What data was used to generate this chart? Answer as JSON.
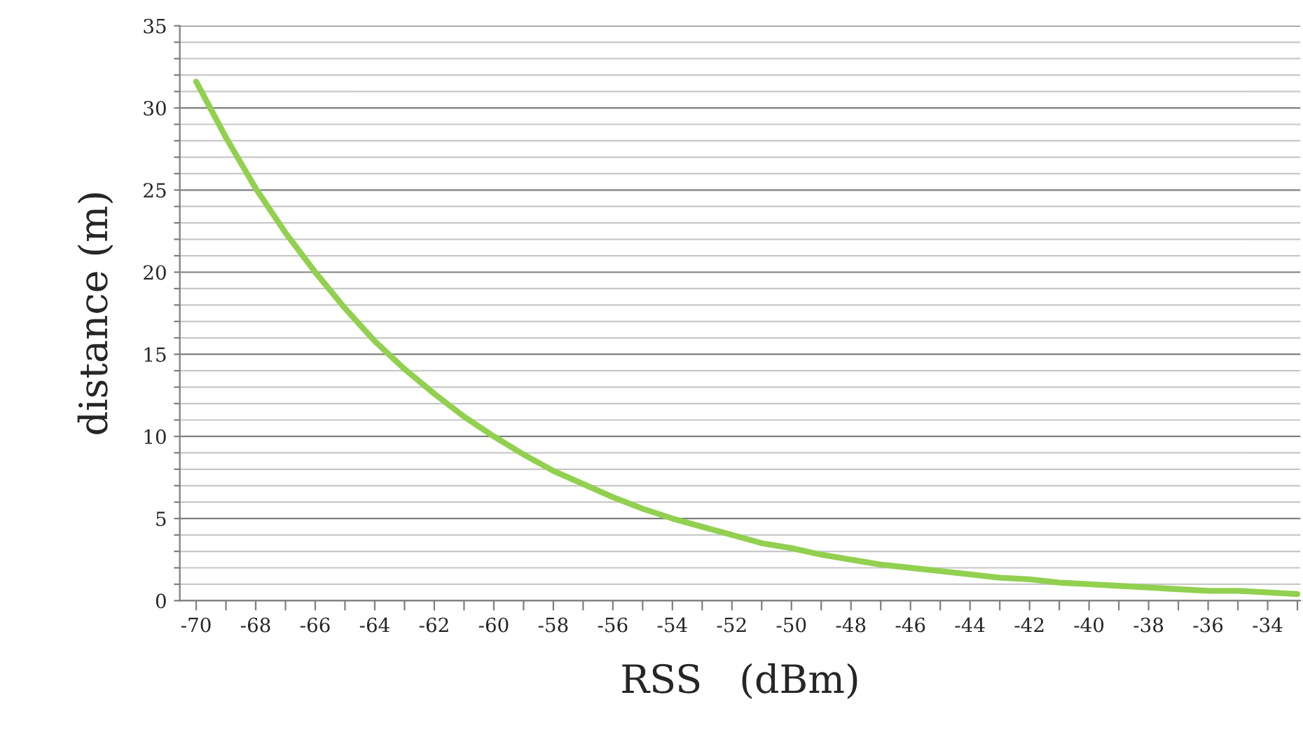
{
  "chart_data": {
    "type": "line",
    "xlabel": "RSS   (dBm)",
    "ylabel": "distance (m)",
    "x": [
      -70,
      -69,
      -68,
      -67,
      -66,
      -65,
      -64,
      -63,
      -62,
      -61,
      -60,
      -59,
      -58,
      -57,
      -56,
      -55,
      -54,
      -53,
      -52,
      -51,
      -50,
      -49,
      -48,
      -47,
      -46,
      -45,
      -44,
      -43,
      -42,
      -41,
      -40,
      -39,
      -38,
      -37,
      -36,
      -35,
      -34,
      -33
    ],
    "series": [
      {
        "color": "#92d050",
        "values": [
          31.6,
          28.2,
          25.1,
          22.4,
          20.0,
          17.8,
          15.8,
          14.1,
          12.6,
          11.2,
          10.0,
          8.9,
          7.9,
          7.1,
          6.3,
          5.6,
          5.0,
          4.5,
          4.0,
          3.5,
          3.2,
          2.8,
          2.5,
          2.2,
          2.0,
          1.8,
          1.6,
          1.4,
          1.3,
          1.1,
          1.0,
          0.9,
          0.8,
          0.7,
          0.6,
          0.6,
          0.5,
          0.4
        ]
      }
    ],
    "xlim": [
      -70.55,
      -32.9
    ],
    "xticks": [
      -70,
      {
        "value": -69,
        "label": null
      },
      -68,
      {
        "value": -67,
        "label": null
      },
      -66,
      {
        "value": -65,
        "label": null
      },
      -64,
      {
        "value": -63,
        "label": null
      },
      -62,
      {
        "value": -61,
        "label": null
      },
      -60,
      {
        "value": -59,
        "label": null
      },
      -58,
      {
        "value": -57,
        "label": null
      },
      -56,
      {
        "value": -55,
        "label": null
      },
      -54,
      {
        "value": -53,
        "label": null
      },
      -52,
      {
        "value": -51,
        "label": null
      },
      -50,
      {
        "value": -49,
        "label": null
      },
      -48,
      {
        "value": -47,
        "label": null
      },
      -46,
      {
        "value": -45,
        "label": null
      },
      -44,
      {
        "value": -43,
        "label": null
      },
      -42,
      {
        "value": -41,
        "label": null
      },
      -40,
      {
        "value": -39,
        "label": null
      },
      -38,
      {
        "value": -37,
        "label": null
      },
      -36,
      {
        "value": -35,
        "label": null
      },
      -34,
      {
        "value": -33,
        "label": null
      }
    ],
    "ylim": [
      0,
      35
    ],
    "yticks": [
      0,
      {
        "value": 1,
        "label": null
      },
      {
        "value": 2,
        "label": null
      },
      {
        "value": 3,
        "label": null
      },
      {
        "value": 4,
        "label": null
      },
      5,
      {
        "value": 6,
        "label": null
      },
      {
        "value": 7,
        "label": null
      },
      {
        "value": 8,
        "label": null
      },
      {
        "value": 9,
        "label": null
      },
      10,
      {
        "value": 11,
        "label": null
      },
      {
        "value": 12,
        "label": null
      },
      {
        "value": 13,
        "label": null
      },
      {
        "value": 14,
        "label": null
      },
      15,
      {
        "value": 16,
        "label": null
      },
      {
        "value": 17,
        "label": null
      },
      {
        "value": 18,
        "label": null
      },
      {
        "value": 19,
        "label": null
      },
      20,
      {
        "value": 21,
        "label": null
      },
      {
        "value": 22,
        "label": null
      },
      {
        "value": 23,
        "label": null
      },
      {
        "value": 24,
        "label": null
      },
      25,
      {
        "value": 26,
        "label": null
      },
      {
        "value": 27,
        "label": null
      },
      {
        "value": 28,
        "label": null
      },
      {
        "value": 29,
        "label": null
      },
      30,
      {
        "value": 31,
        "label": null
      },
      {
        "value": 32,
        "label": null
      },
      {
        "value": 33,
        "label": null
      },
      {
        "value": 34,
        "label": null
      },
      35
    ],
    "grid": "y",
    "marker": "none",
    "line_style": "solid"
  }
}
